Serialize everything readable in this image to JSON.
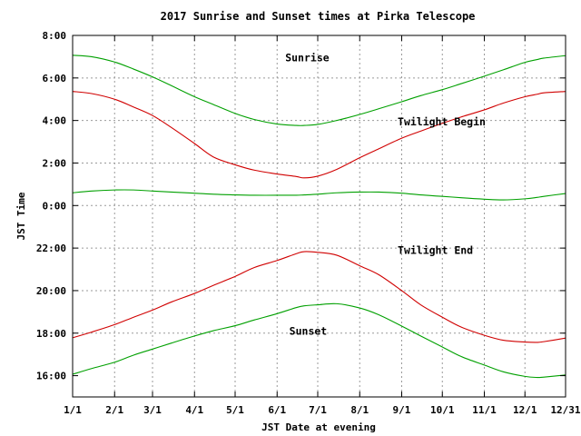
{
  "chart_data": {
    "type": "line",
    "title": "2017 Sunrise and Sunset times at Pirka Telescope",
    "xlabel": "JST Date at evening",
    "ylabel": "JST Time",
    "x_ticks": [
      "1/1",
      "2/1",
      "3/1",
      "4/1",
      "5/1",
      "6/1",
      "7/1",
      "8/1",
      "9/1",
      "10/1",
      "11/1",
      "12/1",
      "12/31"
    ],
    "y_ticks": [
      "16:00",
      "18:00",
      "20:00",
      "22:00",
      "0:00",
      "2:00",
      "4:00",
      "6:00",
      "8:00"
    ],
    "y_range_hours_after_noon": [
      3,
      20
    ],
    "grid": true,
    "legend": "none",
    "x_dates": [
      "1/1",
      "1/15",
      "2/1",
      "2/15",
      "3/1",
      "3/15",
      "4/1",
      "4/15",
      "5/1",
      "5/15",
      "6/1",
      "6/15",
      "6/21",
      "7/1",
      "7/15",
      "8/1",
      "8/15",
      "9/1",
      "9/15",
      "10/1",
      "10/15",
      "11/1",
      "11/15",
      "12/1",
      "12/10",
      "12/15",
      "12/31"
    ],
    "series": [
      {
        "name": "Sunrise",
        "color": "#00a000",
        "label_pos": [
          157,
          18.95
        ],
        "values": [
          "7:04",
          "7:00",
          "6:45",
          "6:25",
          "6:03",
          "5:38",
          "5:07",
          "4:45",
          "4:20",
          "4:03",
          "3:50",
          "3:46",
          "3:46",
          "3:49",
          "4:00",
          "4:17",
          "4:33",
          "4:53",
          "5:10",
          "5:27",
          "5:44",
          "6:05",
          "6:23",
          "6:44",
          "6:52",
          "6:56",
          "7:03"
        ]
      },
      {
        "name": "Twilight Begin",
        "color": "#d00000",
        "label_pos": [
          240,
          15.95
        ],
        "values": [
          "5:22",
          "5:16",
          "5:00",
          "4:38",
          "4:14",
          "3:40",
          "2:55",
          "2:17",
          "1:55",
          "1:40",
          "1:29",
          "1:22",
          "1:18",
          "1:23",
          "1:42",
          "2:15",
          "2:40",
          "3:10",
          "3:30",
          "3:52",
          "4:10",
          "4:30",
          "4:49",
          "5:07",
          "5:14",
          "5:18",
          "5:22"
        ]
      },
      {
        "name": "",
        "color": "#00a000",
        "values": [
          "0:36",
          "0:41",
          "0:44",
          "0:44",
          "0:41",
          "0:38",
          "0:35",
          "0:32",
          "0:30",
          "0:29",
          "0:29",
          "0:29",
          "0:30",
          "0:32",
          "0:36",
          "0:38",
          "0:38",
          "0:35",
          "0:30",
          "0:26",
          "0:22",
          "0:18",
          "0:16",
          "0:19",
          "0:23",
          "0:26",
          "0:34"
        ]
      },
      {
        "name": "Twilight End",
        "color": "#d00000",
        "label_pos": [
          240,
          9.9
        ],
        "values": [
          "17:47",
          "18:03",
          "18:24",
          "18:45",
          "19:05",
          "19:28",
          "19:52",
          "20:15",
          "20:40",
          "21:05",
          "21:25",
          "21:44",
          "21:50",
          "21:48",
          "21:40",
          "21:10",
          "20:45",
          "20:00",
          "19:20",
          "18:45",
          "18:17",
          "17:54",
          "17:40",
          "17:35",
          "17:34",
          "17:36",
          "17:46"
        ]
      },
      {
        "name": "Sunset",
        "color": "#00a000",
        "label_pos": [
          160,
          6.1
        ],
        "values": [
          "16:04",
          "16:20",
          "16:38",
          "16:58",
          "17:15",
          "17:32",
          "17:52",
          "18:07",
          "18:21",
          "18:37",
          "18:55",
          "19:12",
          "19:17",
          "19:20",
          "19:23",
          "19:11",
          "18:52",
          "18:20",
          "17:52",
          "17:21",
          "16:54",
          "16:30",
          "16:11",
          "15:58",
          "15:55",
          "15:56",
          "16:02"
        ]
      }
    ]
  }
}
